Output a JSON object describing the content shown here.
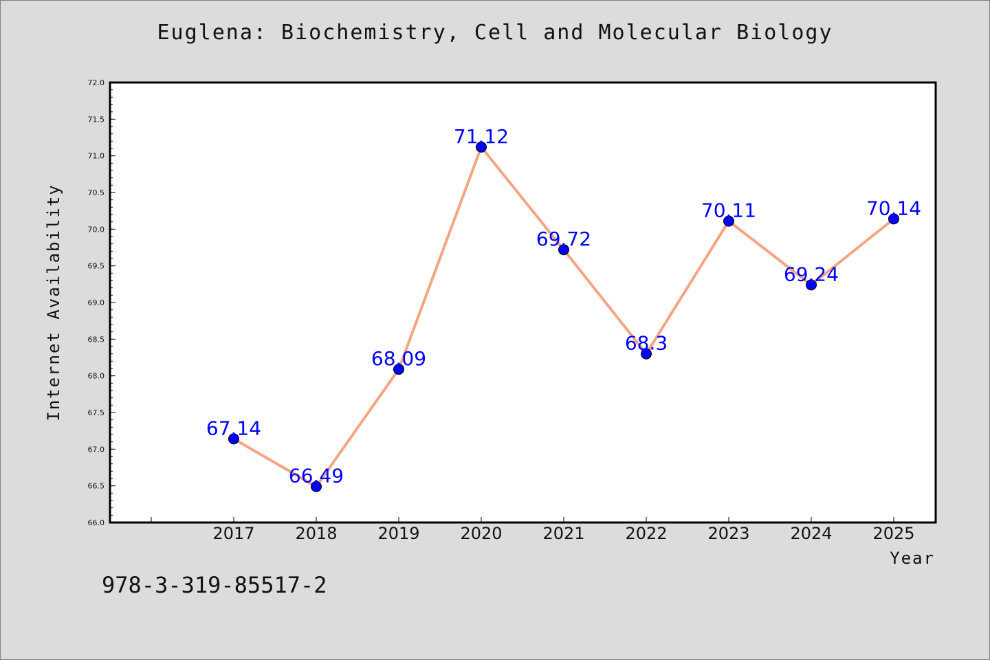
{
  "chart_data": {
    "type": "line",
    "title": "Euglena: Biochemistry, Cell and Molecular Biology",
    "xlabel": "Year",
    "ylabel": "Internet Availability",
    "categories": [
      "2017",
      "2018",
      "2019",
      "2020",
      "2021",
      "2022",
      "2023",
      "2024",
      "2025"
    ],
    "series": [
      {
        "values": [
          67.14,
          66.49,
          68.09,
          71.12,
          69.72,
          68.3,
          70.11,
          69.24,
          70.14
        ],
        "data_labels": [
          "67.14",
          "66.49",
          "68.09",
          "71.12",
          "69.72",
          "68.3",
          "70.11",
          "69.24",
          "70.14"
        ],
        "line_color": "#f4a582",
        "marker_color": "#0000ff"
      }
    ],
    "ylim": [
      66.0,
      72.0
    ],
    "y_ticks": [
      "66.0",
      "66.5",
      "67.0",
      "67.5",
      "68.0",
      "68.5",
      "69.0",
      "69.5",
      "70.0",
      "70.5",
      "71.0",
      "71.5",
      "72.0"
    ],
    "grid": false,
    "legend": "none"
  },
  "footer": {
    "isbn": "978-3-319-85517-2"
  },
  "colors": {
    "background": "#dcdcdc",
    "plot_background": "#ffffff",
    "line": "#f4a582",
    "marker": "#0000ff",
    "data_label": "#0000ff"
  }
}
